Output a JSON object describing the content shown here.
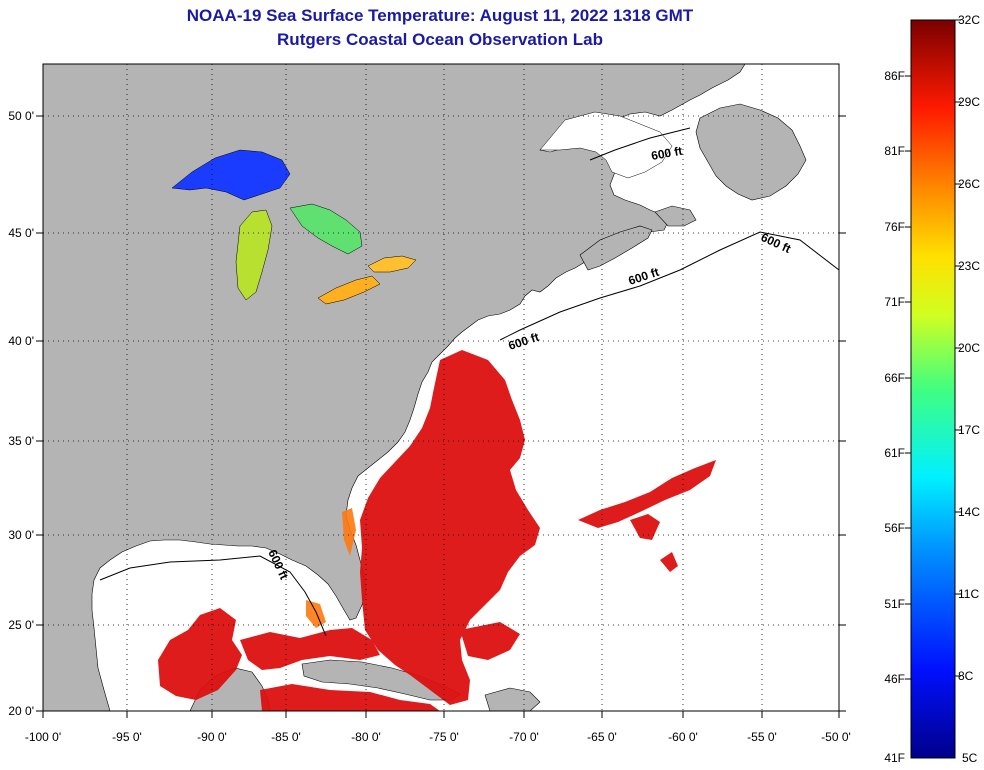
{
  "title": "NOAA-19 Sea Surface Temperature:  August 11, 2022 1318 GMT",
  "subtitle": "Rutgers Coastal Ocean Observation Lab",
  "map": {
    "lon_labels": [
      "-100 0'",
      "-95 0'",
      "-90 0'",
      "-85 0'",
      "-80 0'",
      "-75 0'",
      "-70 0'",
      "-65 0'",
      "-60 0'",
      "-55 0'",
      "-50 0'"
    ],
    "lat_labels": [
      "50 0'",
      "45 0'",
      "40 0'",
      "35 0'",
      "30 0'",
      "25 0'",
      "20 0'"
    ],
    "lon_range": [
      -100,
      -50
    ],
    "lat_range": [
      20,
      52.3
    ],
    "contour_label": "600 ft",
    "land_color": "#b4b4b4",
    "ocean_nodata_color": "#ffffff",
    "gulf_stream_color": "#dd1010"
  },
  "colorbar": {
    "f_labels": [
      "86F",
      "81F",
      "76F",
      "71F",
      "66F",
      "61F",
      "56F",
      "51F",
      "46F",
      "41F"
    ],
    "c_labels": [
      "32C",
      "29C",
      "26C",
      "23C",
      "20C",
      "17C",
      "14C",
      "11C",
      "8C",
      "5C"
    ],
    "range_c": [
      5,
      32
    ]
  }
}
